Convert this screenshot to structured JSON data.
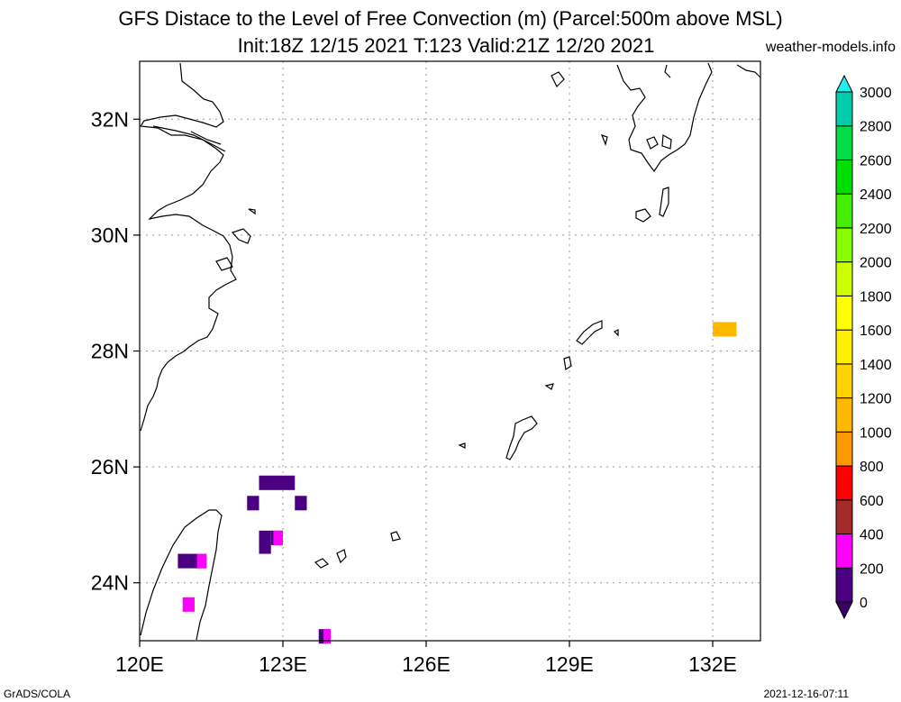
{
  "header": {
    "title_line1": "GFS Distace to the Level of Free Convection (m) (Parcel:500m above MSL)",
    "title_line2": "Init:18Z 12/15 2021 T:123 Valid:21Z 12/20 2021",
    "site": "weather-models.info"
  },
  "footer": {
    "left": "GrADS/COLA",
    "right": "2021-12-16-07:11"
  },
  "map": {
    "lon_range": [
      120,
      133
    ],
    "lat_range": [
      23,
      33
    ],
    "lon_ticks": [
      {
        "v": 120,
        "label": "120E"
      },
      {
        "v": 123,
        "label": "123E"
      },
      {
        "v": 126,
        "label": "126E"
      },
      {
        "v": 129,
        "label": "129E"
      },
      {
        "v": 132,
        "label": "132E"
      }
    ],
    "lat_ticks": [
      {
        "v": 24,
        "label": "24N"
      },
      {
        "v": 26,
        "label": "26N"
      },
      {
        "v": 28,
        "label": "28N"
      },
      {
        "v": 30,
        "label": "30N"
      },
      {
        "v": 32,
        "label": "32N"
      }
    ],
    "grid": true,
    "cells": [
      {
        "lon": 122.5,
        "lat": 25.85,
        "lon2": 123.25,
        "lat2": 25.6,
        "color": "#4b0082"
      },
      {
        "lon": 122.25,
        "lat": 25.5,
        "lon2": 122.5,
        "lat2": 25.25,
        "color": "#4b0082"
      },
      {
        "lon": 123.25,
        "lat": 25.5,
        "lon2": 123.5,
        "lat2": 25.25,
        "color": "#4b0082"
      },
      {
        "lon": 122.5,
        "lat": 24.9,
        "lon2": 122.75,
        "lat2": 24.5,
        "color": "#4b0082"
      },
      {
        "lon": 122.75,
        "lat": 24.9,
        "lon2": 123.0,
        "lat2": 24.65,
        "color": "#4b0082"
      },
      {
        "lon": 120.8,
        "lat": 24.5,
        "lon2": 121.4,
        "lat2": 24.25,
        "color": "#4b0082"
      },
      {
        "lon": 123.75,
        "lat": 23.2,
        "lon2": 124.0,
        "lat2": 22.95,
        "color": "#4b0082"
      }
    ],
    "cells_magenta": [
      {
        "lon": 122.8,
        "lat": 24.9,
        "lon2": 123.0,
        "lat2": 24.65,
        "color": "#ff00ff"
      },
      {
        "lon": 121.2,
        "lat": 24.5,
        "lon2": 121.4,
        "lat2": 24.25,
        "color": "#ff00ff"
      },
      {
        "lon": 120.9,
        "lat": 23.75,
        "lon2": 121.15,
        "lat2": 23.5,
        "color": "#ff00ff"
      },
      {
        "lon": 123.85,
        "lat": 23.2,
        "lon2": 124.0,
        "lat2": 22.95,
        "color": "#ff00ff"
      }
    ],
    "cells_orange": [
      {
        "lon": 132.0,
        "lat": 28.5,
        "lon2": 132.5,
        "lat2": 28.25,
        "color": "#ffb800"
      }
    ]
  },
  "colorbar": {
    "levels": [
      "0",
      "200",
      "400",
      "600",
      "800",
      "1000",
      "1200",
      "1400",
      "1600",
      "1800",
      "2000",
      "2200",
      "2400",
      "2600",
      "2800",
      "3000"
    ],
    "colors": [
      "#4b0082",
      "#ff00ff",
      "#a52a2a",
      "#ff0000",
      "#ff9900",
      "#ffb800",
      "#ffd200",
      "#ffee00",
      "#ffff00",
      "#ccff00",
      "#88ff00",
      "#44ee00",
      "#00dd00",
      "#00dd44",
      "#00ccaa",
      "#00eedd"
    ],
    "under_color": "#3a0068",
    "over_color": "#22eeee"
  }
}
